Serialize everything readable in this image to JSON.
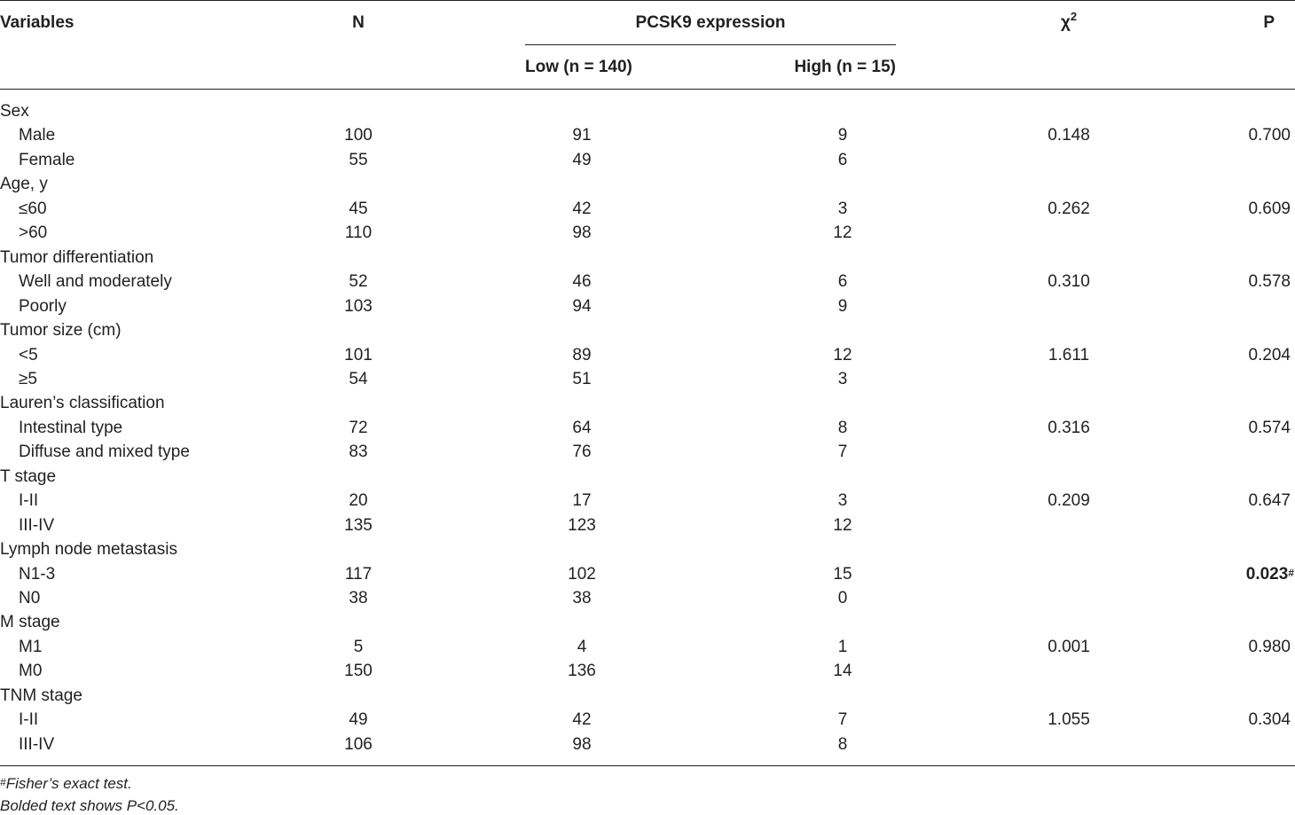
{
  "table": {
    "headers": {
      "variables": "Variables",
      "n": "N",
      "group": "PCSK9 expression",
      "low": "Low (n = 140)",
      "high": "High (n = 15)",
      "chi_base": "χ",
      "chi_sup": "2",
      "p": "P"
    },
    "rows": [
      {
        "type": "category",
        "label": "Sex"
      },
      {
        "type": "item",
        "label": "Male",
        "n": "100",
        "low": "91",
        "high": "9",
        "chi2": "0.148",
        "p": "0.700"
      },
      {
        "type": "item",
        "label": "Female",
        "n": "55",
        "low": "49",
        "high": "6",
        "chi2": "",
        "p": ""
      },
      {
        "type": "category",
        "label": "Age, y"
      },
      {
        "type": "item",
        "label": "≤60",
        "n": "45",
        "low": "42",
        "high": "3",
        "chi2": "0.262",
        "p": "0.609"
      },
      {
        "type": "item",
        "label": ">60",
        "n": "110",
        "low": "98",
        "high": "12",
        "chi2": "",
        "p": ""
      },
      {
        "type": "category",
        "label": "Tumor differentiation"
      },
      {
        "type": "item",
        "label": "Well and moderately",
        "n": "52",
        "low": "46",
        "high": "6",
        "chi2": "0.310",
        "p": "0.578"
      },
      {
        "type": "item",
        "label": "Poorly",
        "n": "103",
        "low": "94",
        "high": "9",
        "chi2": "",
        "p": ""
      },
      {
        "type": "category",
        "label": "Tumor size (cm)"
      },
      {
        "type": "item",
        "label": "<5",
        "n": "101",
        "low": "89",
        "high": "12",
        "chi2": "1.611",
        "p": "0.204"
      },
      {
        "type": "item",
        "label": "≥5",
        "n": "54",
        "low": "51",
        "high": "3",
        "chi2": "",
        "p": ""
      },
      {
        "type": "category",
        "label": "Lauren’s classification"
      },
      {
        "type": "item",
        "label": "Intestinal type",
        "n": "72",
        "low": "64",
        "high": "8",
        "chi2": "0.316",
        "p": "0.574"
      },
      {
        "type": "item",
        "label": "Diffuse and mixed type",
        "n": "83",
        "low": "76",
        "high": "7",
        "chi2": "",
        "p": ""
      },
      {
        "type": "category",
        "label": "T stage"
      },
      {
        "type": "item",
        "label": "I-II",
        "n": "20",
        "low": "17",
        "high": "3",
        "chi2": "0.209",
        "p": "0.647"
      },
      {
        "type": "item",
        "label": "III-IV",
        "n": "135",
        "low": "123",
        "high": "12",
        "chi2": "",
        "p": ""
      },
      {
        "type": "category",
        "label": "Lymph node metastasis"
      },
      {
        "type": "item",
        "label": "N1-3",
        "n": "117",
        "low": "102",
        "high": "15",
        "chi2": "",
        "p": "0.023",
        "p_sup": "#",
        "p_bold": true
      },
      {
        "type": "item",
        "label": "N0",
        "n": "38",
        "low": "38",
        "high": "0",
        "chi2": "",
        "p": ""
      },
      {
        "type": "category",
        "label": "M stage"
      },
      {
        "type": "item",
        "label": "M1",
        "n": "5",
        "low": "4",
        "high": "1",
        "chi2": "0.001",
        "p": "0.980"
      },
      {
        "type": "item",
        "label": "M0",
        "n": "150",
        "low": "136",
        "high": "14",
        "chi2": "",
        "p": ""
      },
      {
        "type": "category",
        "label": "TNM stage"
      },
      {
        "type": "item",
        "label": "I-II",
        "n": "49",
        "low": "42",
        "high": "7",
        "chi2": "1.055",
        "p": "0.304"
      },
      {
        "type": "item",
        "label": "III-IV",
        "n": "106",
        "low": "98",
        "high": "8",
        "chi2": "",
        "p": ""
      }
    ]
  },
  "footnotes": {
    "fisher_sup": "#",
    "fisher_text": "Fisher’s exact test.",
    "bold_text": "Bolded text shows P<0.05."
  }
}
